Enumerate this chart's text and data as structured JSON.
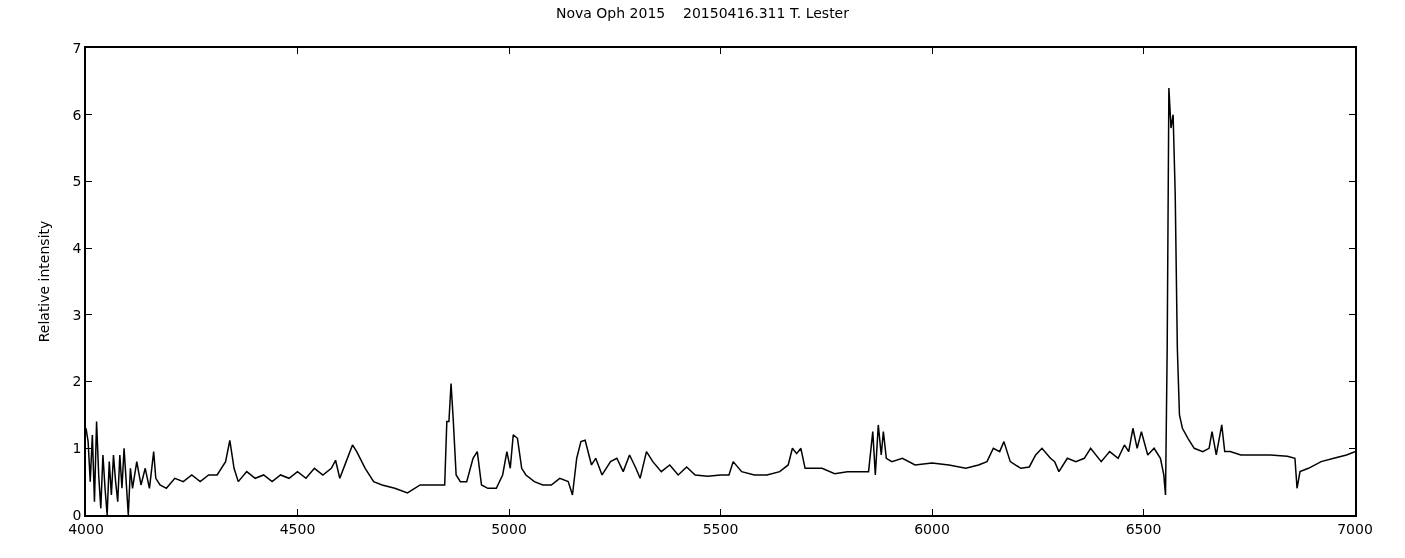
{
  "chart_data": {
    "type": "line",
    "title": "Nova Oph 2015    20150416.311 T. Lester",
    "ylabel": "Relative intensity",
    "x": [
      4000,
      4005,
      4010,
      4015,
      4020,
      4025,
      4030,
      4035,
      4040,
      4045,
      4050,
      4055,
      4060,
      4065,
      4070,
      4075,
      4080,
      4085,
      4090,
      4095,
      4100,
      4105,
      4110,
      4120,
      4130,
      4140,
      4150,
      4160,
      4165,
      4175,
      4190,
      4210,
      4230,
      4250,
      4270,
      4290,
      4310,
      4330,
      4340,
      4350,
      4360,
      4380,
      4400,
      4420,
      4440,
      4460,
      4480,
      4500,
      4520,
      4540,
      4560,
      4580,
      4590,
      4600,
      4615,
      4630,
      4640,
      4660,
      4680,
      4700,
      4730,
      4760,
      4790,
      4820,
      4848,
      4853,
      4858,
      4863,
      4868,
      4875,
      4885,
      4900,
      4915,
      4925,
      4935,
      4950,
      4970,
      4985,
      4995,
      5003,
      5010,
      5020,
      5030,
      5040,
      5060,
      5080,
      5100,
      5120,
      5140,
      5150,
      5160,
      5170,
      5180,
      5195,
      5205,
      5220,
      5240,
      5255,
      5270,
      5285,
      5300,
      5310,
      5325,
      5340,
      5360,
      5380,
      5400,
      5420,
      5440,
      5470,
      5500,
      5520,
      5530,
      5550,
      5580,
      5610,
      5640,
      5660,
      5670,
      5680,
      5690,
      5700,
      5715,
      5740,
      5770,
      5800,
      5830,
      5850,
      5860,
      5866,
      5873,
      5880,
      5885,
      5892,
      5905,
      5930,
      5960,
      6000,
      6040,
      6080,
      6110,
      6130,
      6145,
      6160,
      6170,
      6185,
      6210,
      6230,
      6245,
      6260,
      6280,
      6290,
      6300,
      6320,
      6340,
      6360,
      6375,
      6400,
      6420,
      6440,
      6455,
      6465,
      6475,
      6485,
      6495,
      6510,
      6525,
      6540,
      6548,
      6552,
      6556,
      6560,
      6565,
      6570,
      6575,
      6580,
      6585,
      6592,
      6605,
      6620,
      6640,
      6655,
      6662,
      6672,
      6685,
      6692,
      6705,
      6730,
      6760,
      6800,
      6840,
      6858,
      6863,
      6870,
      6890,
      6920,
      6950,
      6980,
      7000
    ],
    "values": [
      1.3,
      1.1,
      0.5,
      1.2,
      0.2,
      1.4,
      0.6,
      0.1,
      0.9,
      0.4,
      0.0,
      0.8,
      0.3,
      0.9,
      0.5,
      0.2,
      0.9,
      0.4,
      1.0,
      0.5,
      0.0,
      0.7,
      0.4,
      0.8,
      0.45,
      0.7,
      0.4,
      0.95,
      0.55,
      0.45,
      0.4,
      0.55,
      0.5,
      0.6,
      0.5,
      0.6,
      0.6,
      0.8,
      1.12,
      0.7,
      0.5,
      0.65,
      0.55,
      0.6,
      0.5,
      0.6,
      0.55,
      0.65,
      0.55,
      0.7,
      0.6,
      0.7,
      0.82,
      0.55,
      0.8,
      1.05,
      0.95,
      0.7,
      0.5,
      0.45,
      0.4,
      0.33,
      0.45,
      0.45,
      0.45,
      1.4,
      1.4,
      1.97,
      1.45,
      0.6,
      0.5,
      0.5,
      0.85,
      0.95,
      0.45,
      0.4,
      0.4,
      0.6,
      0.95,
      0.7,
      1.2,
      1.15,
      0.7,
      0.6,
      0.5,
      0.45,
      0.45,
      0.55,
      0.5,
      0.3,
      0.85,
      1.1,
      1.12,
      0.75,
      0.85,
      0.6,
      0.8,
      0.85,
      0.65,
      0.9,
      0.7,
      0.55,
      0.95,
      0.8,
      0.65,
      0.75,
      0.6,
      0.72,
      0.6,
      0.58,
      0.6,
      0.6,
      0.8,
      0.65,
      0.6,
      0.6,
      0.65,
      0.75,
      1.0,
      0.92,
      1.0,
      0.7,
      0.7,
      0.7,
      0.62,
      0.65,
      0.65,
      0.65,
      1.25,
      0.6,
      1.35,
      0.9,
      1.25,
      0.85,
      0.8,
      0.85,
      0.75,
      0.78,
      0.75,
      0.7,
      0.75,
      0.8,
      1.0,
      0.95,
      1.1,
      0.8,
      0.7,
      0.72,
      0.9,
      1.0,
      0.85,
      0.8,
      0.65,
      0.85,
      0.8,
      0.85,
      1.0,
      0.8,
      0.95,
      0.85,
      1.05,
      0.95,
      1.3,
      1.0,
      1.25,
      0.9,
      1.0,
      0.85,
      0.6,
      0.3,
      2.5,
      6.4,
      5.8,
      6.0,
      4.8,
      2.5,
      1.5,
      1.3,
      1.15,
      1.0,
      0.95,
      1.0,
      1.25,
      0.9,
      1.35,
      0.95,
      0.95,
      0.9,
      0.9,
      0.9,
      0.88,
      0.85,
      0.4,
      0.65,
      0.7,
      0.8,
      0.85,
      0.9,
      0.95
    ],
    "color": "#000000",
    "xlim": [
      4000,
      7000
    ],
    "xticks": [
      4000,
      4500,
      5000,
      5500,
      6000,
      6500,
      7000
    ],
    "ylim": [
      0,
      7
    ],
    "yticks": [
      0,
      1,
      2,
      3,
      4,
      5,
      6,
      7
    ]
  }
}
